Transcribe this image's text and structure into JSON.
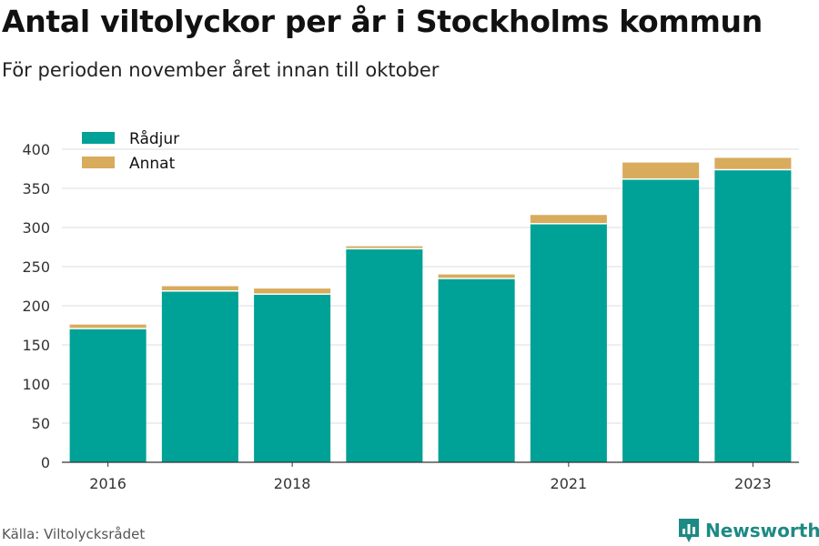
{
  "title": "Antal viltolyckor per år i Stockholms kommun",
  "subtitle": "För perioden november året innan till oktober",
  "source": "Källa: Viltolycksrådet",
  "brand": {
    "name": "Newsworthy",
    "icon": "bar-chart-logo-icon",
    "color": "#1d8a84"
  },
  "chart_data": {
    "type": "bar",
    "stacked": true,
    "categories": [
      "2016",
      "2017",
      "2018",
      "2019",
      "2020",
      "2021",
      "2022",
      "2023"
    ],
    "x_tick_labels": [
      "2016",
      "",
      "2018",
      "",
      "",
      "2021",
      "",
      "2023"
    ],
    "series": [
      {
        "name": "Rådjur",
        "color": "#00a196",
        "values": [
          170,
          218,
          214,
          272,
          234,
          304,
          361,
          373
        ]
      },
      {
        "name": "Annat",
        "color": "#d9ab5c",
        "values": [
          6,
          7,
          8,
          4,
          6,
          12,
          22,
          16
        ]
      }
    ],
    "ylim": [
      0,
      400
    ],
    "yticks": [
      0,
      50,
      100,
      150,
      200,
      250,
      300,
      350,
      400
    ],
    "grid": true,
    "legend_position": "top-left",
    "xlabel": "",
    "ylabel": ""
  }
}
